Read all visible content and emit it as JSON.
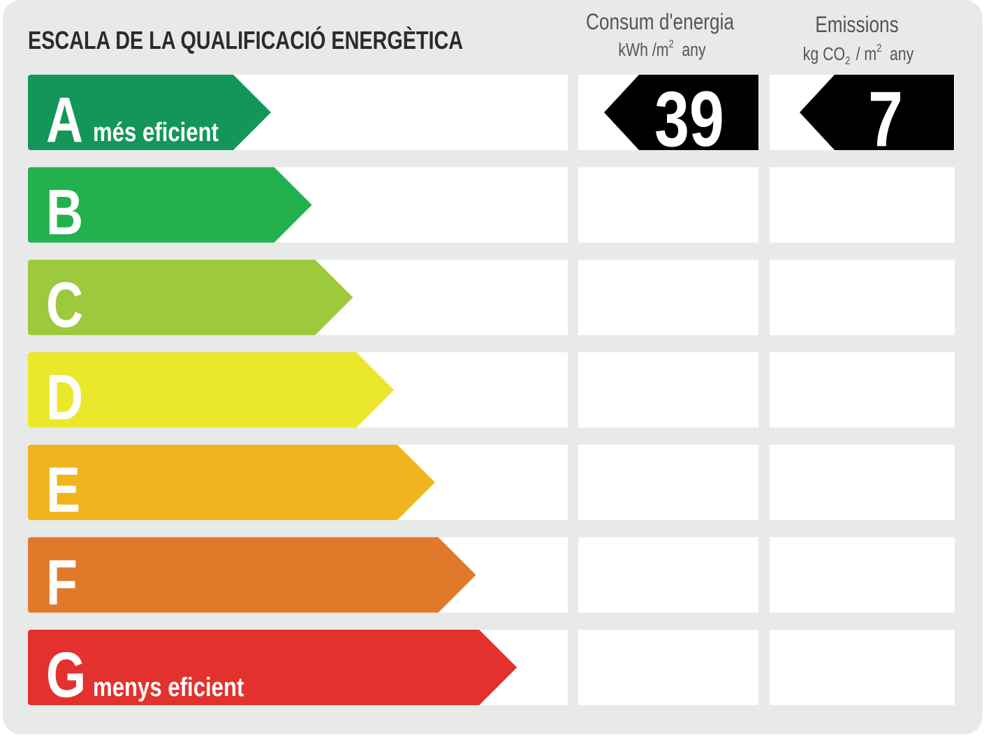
{
  "title": "ESCALA DE LA QUALIFICACIÓ ENERGÈTICA",
  "consumption": {
    "title": "Consum d'energia",
    "unit": "kWh /m",
    "unit_exp": "2",
    "unit_suffix": "any",
    "value": 39
  },
  "emissions": {
    "title": "Emissions",
    "unit": "kg CO",
    "unit_sub": "2",
    "unit_mid": "/ m",
    "unit_exp": "2",
    "unit_suffix": "any",
    "value": 7
  },
  "ratings": [
    {
      "letter": "A",
      "label": "més eficient",
      "color": "#149659"
    },
    {
      "letter": "B",
      "color": "#22b14c"
    },
    {
      "letter": "C",
      "color": "#9dc93d"
    },
    {
      "letter": "D",
      "color": "#ebe72a"
    },
    {
      "letter": "E",
      "color": "#efb41e"
    },
    {
      "letter": "F",
      "color": "#e07a2a"
    },
    {
      "letter": "G",
      "label": "menys eficient",
      "color": "#e3312d"
    }
  ]
}
